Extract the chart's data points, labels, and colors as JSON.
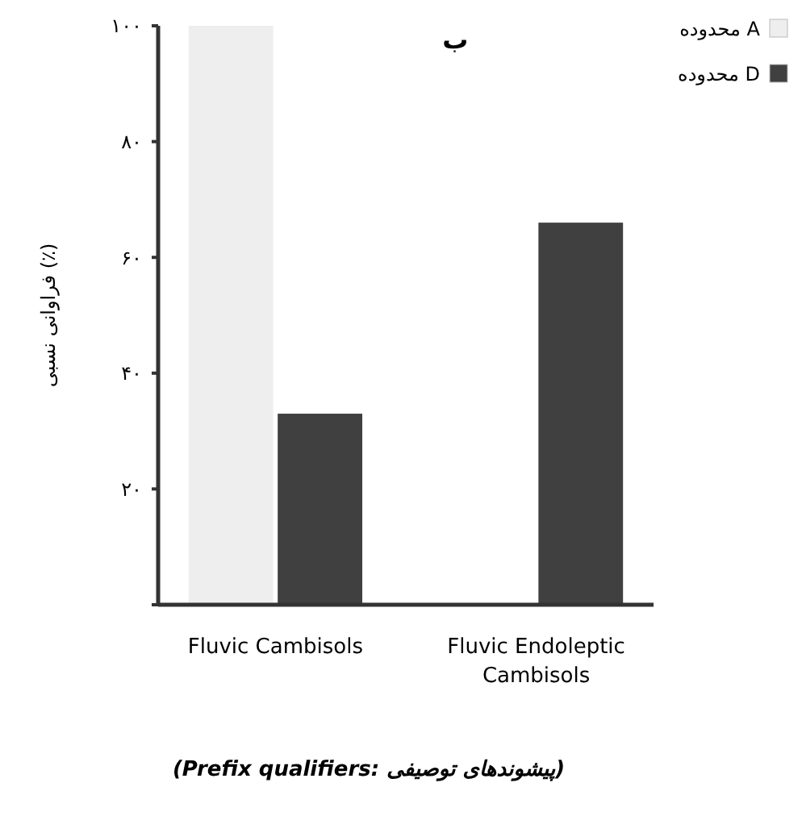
{
  "chart_data": {
    "type": "bar",
    "title": "ب",
    "ylabel": "فراوانی نسبی (٪)",
    "annotations": [
      "(Prefix qualifiers: پیشوندهای توصیفی)"
    ],
    "categories": [
      "Fluvic Cambisols",
      "Fluvic Endoleptic Cambisols"
    ],
    "series": [
      {
        "name": "محدوده A",
        "color": "#eeeeee",
        "values": [
          100,
          0
        ]
      },
      {
        "name": "محدوده D",
        "color": "#404040",
        "values": [
          33,
          66
        ]
      }
    ],
    "ylim": [
      0,
      100
    ],
    "yticks": [
      {
        "value": 0,
        "label": null
      },
      {
        "value": 20,
        "label": "۲۰"
      },
      {
        "value": 40,
        "label": "۴۰"
      },
      {
        "value": 60,
        "label": "۶۰"
      },
      {
        "value": 80,
        "label": "۸۰"
      },
      {
        "value": 100,
        "label": "۱۰۰"
      }
    ],
    "legend": "top right",
    "grid": false
  }
}
